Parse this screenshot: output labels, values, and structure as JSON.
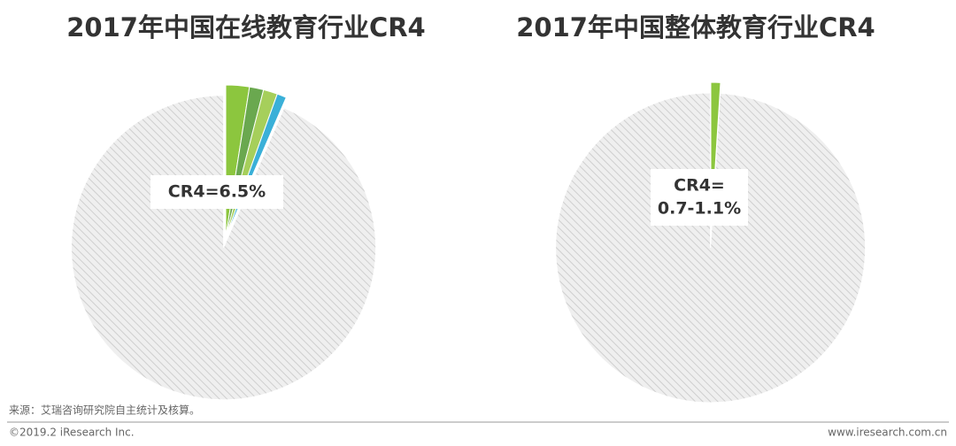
{
  "chart_data": [
    {
      "type": "pie",
      "title": "2017年中国在线教育行业CR4",
      "categories": [
        null,
        null,
        null,
        null,
        null
      ],
      "values": [
        2.5,
        1.5,
        1.5,
        1,
        93.5
      ],
      "colors": [
        "#8cc63e",
        "#6aa84f",
        "#a6cf5b",
        "#3ab0d8",
        "hatch"
      ],
      "annotation": [
        "CR4=6.5%"
      ]
    },
    {
      "type": "pie",
      "title": "2017年中国整体教育行业CR4",
      "categories": [
        null,
        null
      ],
      "values": [
        1,
        99
      ],
      "colors": [
        "#8cc63e",
        "hatch"
      ],
      "annotation": [
        "CR4=",
        "0.7-1.1%"
      ]
    }
  ],
  "footer": {
    "source": "来源：艾瑞咨询研究院自主统计及核算。",
    "copyright": "©2019.2 iResearch Inc.",
    "site": "www.iresearch.com.cn"
  }
}
